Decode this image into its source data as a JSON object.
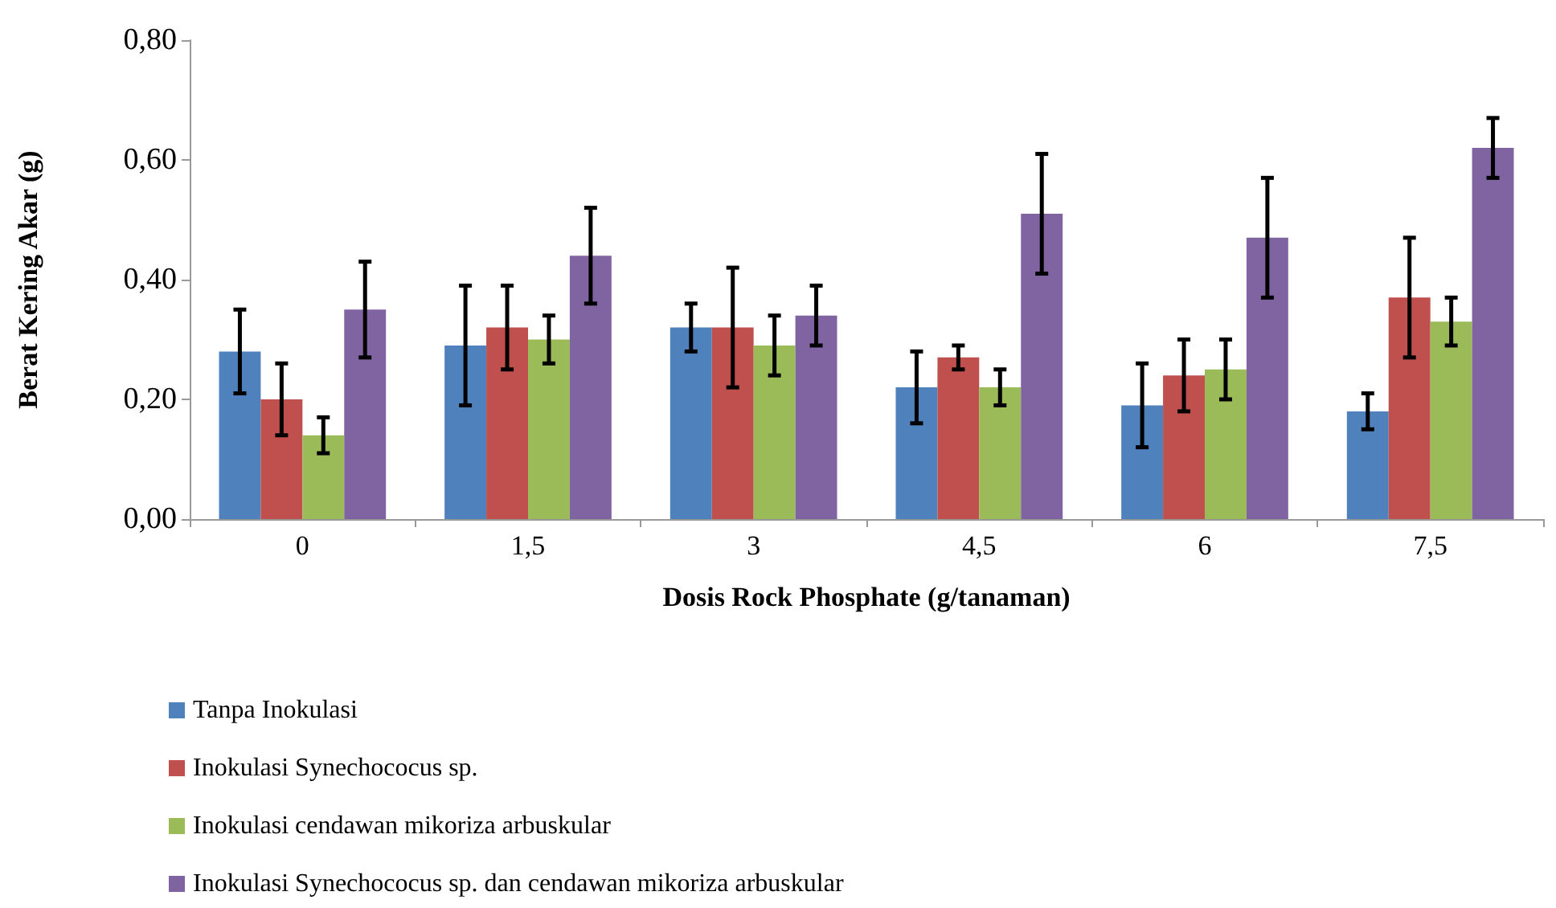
{
  "chart_data": {
    "type": "bar",
    "xlabel": "Dosis Rock Phosphate (g/tanaman)",
    "ylabel": "Berat Kering Akar (g)",
    "categories": [
      "0",
      "1,5",
      "3",
      "4,5",
      "6",
      "7,5"
    ],
    "series": [
      {
        "name": "Tanpa Inokulasi",
        "color": "#4f81bd",
        "values": [
          0.28,
          0.29,
          0.32,
          0.22,
          0.19,
          0.18
        ],
        "errors": [
          0.07,
          0.1,
          0.04,
          0.06,
          0.07,
          0.03
        ]
      },
      {
        "name": "Inokulasi Synechococus sp.",
        "color": "#c0504d",
        "values": [
          0.2,
          0.32,
          0.32,
          0.27,
          0.24,
          0.37
        ],
        "errors": [
          0.06,
          0.07,
          0.1,
          0.02,
          0.06,
          0.1
        ]
      },
      {
        "name": "Inokulasi cendawan mikoriza arbuskular",
        "color": "#9bbb59",
        "values": [
          0.14,
          0.3,
          0.29,
          0.22,
          0.25,
          0.33
        ],
        "errors": [
          0.03,
          0.04,
          0.05,
          0.03,
          0.05,
          0.04
        ]
      },
      {
        "name": "Inokulasi Synechococus sp. dan cendawan mikoriza arbuskular",
        "color": "#8064a2",
        "values": [
          0.35,
          0.44,
          0.34,
          0.51,
          0.47,
          0.62
        ],
        "errors": [
          0.08,
          0.08,
          0.05,
          0.1,
          0.1,
          0.05
        ]
      }
    ],
    "ylim": [
      0,
      0.8
    ],
    "yticks": [
      {
        "value": 0,
        "label": "0,00"
      },
      {
        "value": 0.2,
        "label": "0,20"
      },
      {
        "value": 0.4,
        "label": "0,40"
      },
      {
        "value": 0.6,
        "label": "0,60"
      },
      {
        "value": 0.8,
        "label": "0,80"
      }
    ],
    "grid": false,
    "legend": "bottom left"
  }
}
